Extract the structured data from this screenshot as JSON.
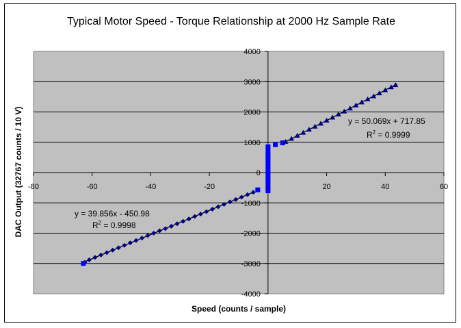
{
  "chart_data": {
    "type": "scatter",
    "title": "Typical Motor Speed - Torque Relationship at 2000 Hz Sample Rate",
    "xlabel": "Speed (counts / sample)",
    "ylabel": "DAC Output (32767 counts / 10 V)",
    "xlim": [
      -80,
      60
    ],
    "ylim": [
      -4000,
      4000
    ],
    "x_ticks": [
      -80,
      -60,
      -40,
      -20,
      0,
      20,
      40,
      60
    ],
    "y_ticks": [
      -4000,
      -3000,
      -2000,
      -1000,
      0,
      1000,
      2000,
      3000,
      4000
    ],
    "grid": "horizontal",
    "plot_background": "#c0c0c0",
    "series": [
      {
        "marker": "diamond",
        "color": "#000080",
        "points": [
          [
            -62.5,
            -2960
          ],
          [
            -61,
            -2880
          ],
          [
            -59,
            -2800
          ],
          [
            -57,
            -2720
          ],
          [
            -55,
            -2640
          ],
          [
            -53,
            -2560
          ],
          [
            -51,
            -2480
          ],
          [
            -49,
            -2400
          ],
          [
            -47,
            -2320
          ],
          [
            -45,
            -2240
          ],
          [
            -43,
            -2160
          ],
          [
            -41,
            -2080
          ],
          [
            -39,
            -2000
          ],
          [
            -37,
            -1920
          ],
          [
            -35,
            -1850
          ],
          [
            -33,
            -1770
          ],
          [
            -31,
            -1690
          ],
          [
            -29,
            -1610
          ],
          [
            -27,
            -1530
          ],
          [
            -25,
            -1450
          ],
          [
            -23,
            -1370
          ],
          [
            -21,
            -1290
          ],
          [
            -19,
            -1210
          ],
          [
            -17,
            -1130
          ],
          [
            -15,
            -1050
          ],
          [
            -13,
            -970
          ],
          [
            -11,
            -890
          ],
          [
            -9,
            -810
          ],
          [
            -7,
            -730
          ],
          [
            -5,
            -650
          ]
        ]
      },
      {
        "marker": "square",
        "color": "#0000ff",
        "points": [
          [
            -63,
            -3000
          ],
          [
            -3.5,
            -570
          ],
          [
            0,
            -600
          ],
          [
            0,
            -500
          ],
          [
            0,
            -400
          ],
          [
            0,
            -300
          ],
          [
            0,
            -200
          ],
          [
            0,
            -100
          ],
          [
            0,
            0
          ],
          [
            0,
            100
          ],
          [
            0,
            200
          ],
          [
            0,
            300
          ],
          [
            0,
            400
          ],
          [
            0,
            500
          ],
          [
            0,
            600
          ],
          [
            0,
            700
          ],
          [
            0,
            850
          ],
          [
            2.5,
            920
          ],
          [
            5,
            980
          ]
        ]
      },
      {
        "marker": "triangle",
        "color": "#000080",
        "points": [
          [
            6,
            1020
          ],
          [
            8,
            1120
          ],
          [
            10,
            1220
          ],
          [
            12,
            1320
          ],
          [
            14,
            1420
          ],
          [
            16,
            1520
          ],
          [
            18,
            1620
          ],
          [
            20,
            1720
          ],
          [
            22,
            1820
          ],
          [
            24,
            1920
          ],
          [
            26,
            2020
          ],
          [
            28,
            2120
          ],
          [
            30,
            2220
          ],
          [
            32,
            2320
          ],
          [
            34,
            2420
          ],
          [
            36,
            2520
          ],
          [
            38,
            2620
          ],
          [
            40,
            2720
          ],
          [
            42,
            2820
          ],
          [
            43.5,
            2890
          ]
        ]
      }
    ],
    "trendlines": [
      {
        "slope": 39.856,
        "intercept": -450.98,
        "x_range": [
          -63,
          -5
        ],
        "equation": "y = 39.856x - 450.98",
        "r2_label": "R",
        "r2_value": " = 0.9998"
      },
      {
        "slope": 50.069,
        "intercept": 717.85,
        "x_range": [
          5,
          44
        ],
        "equation": "y = 50.069x + 717.85",
        "r2_label": "R",
        "r2_value": " = 0.9999"
      }
    ]
  }
}
